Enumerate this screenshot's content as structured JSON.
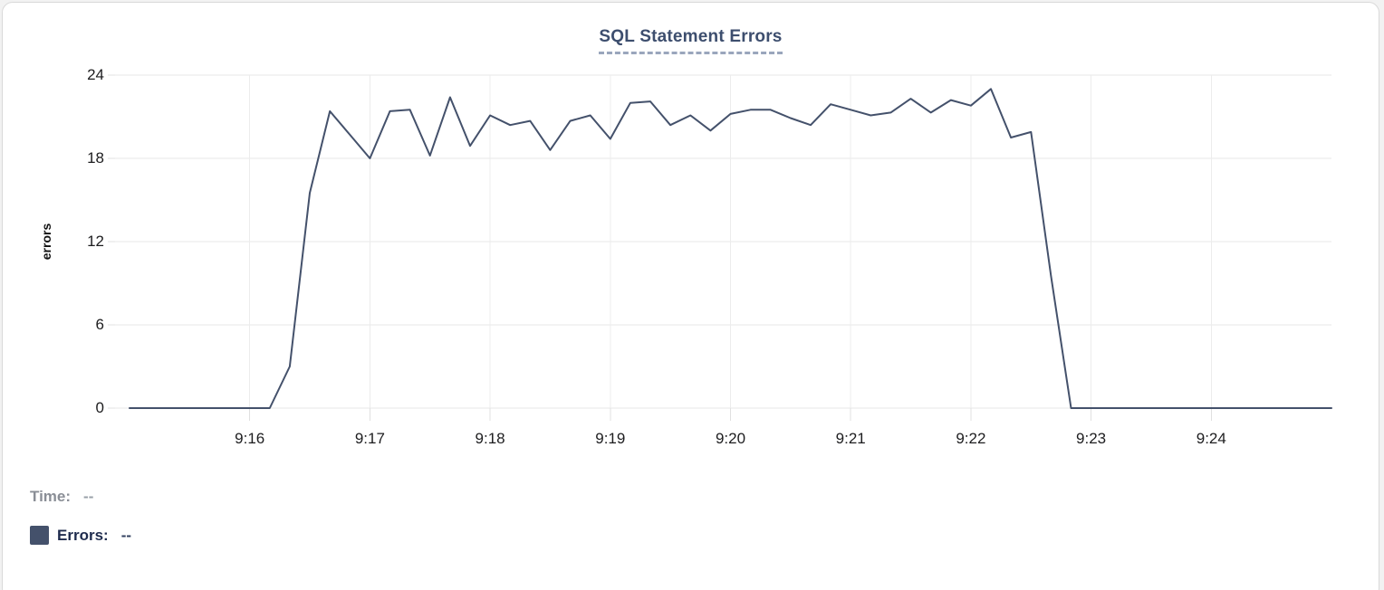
{
  "card": {
    "title": "SQL Statement Errors"
  },
  "chart_data": {
    "type": "line",
    "title": "SQL Statement Errors",
    "xlabel": "",
    "ylabel": "errors",
    "x_tick_labels": [
      "9:16",
      "9:17",
      "9:18",
      "9:19",
      "9:20",
      "9:21",
      "9:22",
      "9:23",
      "9:24"
    ],
    "x_tick_sec": [
      60,
      120,
      180,
      240,
      300,
      360,
      420,
      480,
      540
    ],
    "y_ticks": [
      0,
      6,
      12,
      18,
      24
    ],
    "ylim": [
      0,
      24
    ],
    "x_domain_sec": [
      -7,
      600
    ],
    "start_time": "9:15:00",
    "end_time": "9:25:00",
    "sample_interval_sec": 10,
    "grid": true,
    "legend_position": "bottom-left",
    "series": [
      {
        "name": "Errors",
        "color": "#44516b",
        "points": [
          [
            0,
            0
          ],
          [
            10,
            0
          ],
          [
            20,
            0
          ],
          [
            30,
            0
          ],
          [
            40,
            0
          ],
          [
            50,
            0
          ],
          [
            60,
            0
          ],
          [
            70,
            0
          ],
          [
            80,
            3
          ],
          [
            90,
            15.5
          ],
          [
            100,
            21.4
          ],
          [
            110,
            19.7
          ],
          [
            120,
            18
          ],
          [
            130,
            21.4
          ],
          [
            140,
            21.5
          ],
          [
            150,
            18.2
          ],
          [
            160,
            22.4
          ],
          [
            170,
            18.9
          ],
          [
            180,
            21.1
          ],
          [
            190,
            20.4
          ],
          [
            200,
            20.7
          ],
          [
            210,
            18.6
          ],
          [
            220,
            20.7
          ],
          [
            230,
            21.1
          ],
          [
            240,
            19.4
          ],
          [
            250,
            22
          ],
          [
            260,
            22.1
          ],
          [
            270,
            20.4
          ],
          [
            280,
            21.1
          ],
          [
            290,
            20
          ],
          [
            300,
            21.2
          ],
          [
            310,
            21.5
          ],
          [
            320,
            21.5
          ],
          [
            330,
            20.9
          ],
          [
            340,
            20.4
          ],
          [
            350,
            21.9
          ],
          [
            360,
            21.5
          ],
          [
            370,
            21.1
          ],
          [
            380,
            21.3
          ],
          [
            390,
            22.3
          ],
          [
            400,
            21.3
          ],
          [
            410,
            22.2
          ],
          [
            420,
            21.8
          ],
          [
            430,
            23
          ],
          [
            440,
            19.5
          ],
          [
            450,
            19.9
          ],
          [
            460,
            9.5
          ],
          [
            470,
            0
          ],
          [
            480,
            0
          ],
          [
            490,
            0
          ],
          [
            500,
            0
          ],
          [
            510,
            0
          ],
          [
            520,
            0
          ],
          [
            530,
            0
          ],
          [
            540,
            0
          ],
          [
            550,
            0
          ],
          [
            560,
            0
          ],
          [
            570,
            0
          ],
          [
            580,
            0
          ],
          [
            590,
            0
          ],
          [
            600,
            0
          ]
        ]
      }
    ]
  },
  "tooltip": {
    "time_label": "Time:",
    "time_value": "--",
    "errors_label": "Errors:",
    "errors_value": "--"
  },
  "colors": {
    "line": "#44516b",
    "title": "#3d4e6e",
    "title_underline": "#9aa6bc",
    "grid": "#e7e7e7",
    "tick_text": "#1d1d1f",
    "muted_text": "#8a8e96",
    "legend_dark_text": "#1e2b4d",
    "card_border": "#d9d9d9"
  }
}
